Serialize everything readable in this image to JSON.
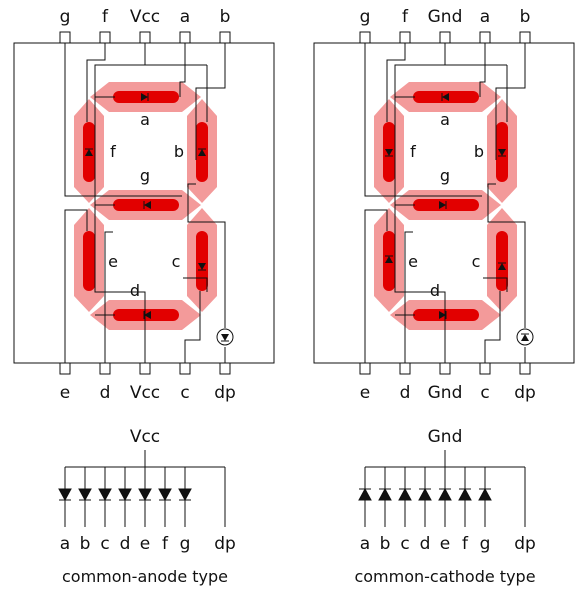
{
  "left_panel": {
    "top_pins": [
      "g",
      "f",
      "Vcc",
      "a",
      "b"
    ],
    "bottom_pins": [
      "e",
      "d",
      "Vcc",
      "c",
      "dp"
    ],
    "segment_labels": {
      "a": "a",
      "b": "b",
      "c": "c",
      "d": "d",
      "e": "e",
      "f": "f",
      "g": "g"
    },
    "common": "Vcc",
    "bus_labels": [
      "a",
      "b",
      "c",
      "d",
      "e",
      "f",
      "g",
      "dp"
    ],
    "caption": "common-anode type"
  },
  "right_panel": {
    "top_pins": [
      "g",
      "f",
      "Gnd",
      "a",
      "b"
    ],
    "bottom_pins": [
      "e",
      "d",
      "Gnd",
      "c",
      "dp"
    ],
    "segment_labels": {
      "a": "a",
      "b": "b",
      "c": "c",
      "d": "d",
      "e": "e",
      "f": "f",
      "g": "g"
    },
    "common": "Gnd",
    "bus_labels": [
      "a",
      "b",
      "c",
      "d",
      "e",
      "f",
      "g",
      "dp"
    ],
    "caption": "common-cathode type"
  },
  "colors": {
    "segment_glow": "#f39a9a",
    "segment_core": "#e20000",
    "line": "#111111"
  }
}
